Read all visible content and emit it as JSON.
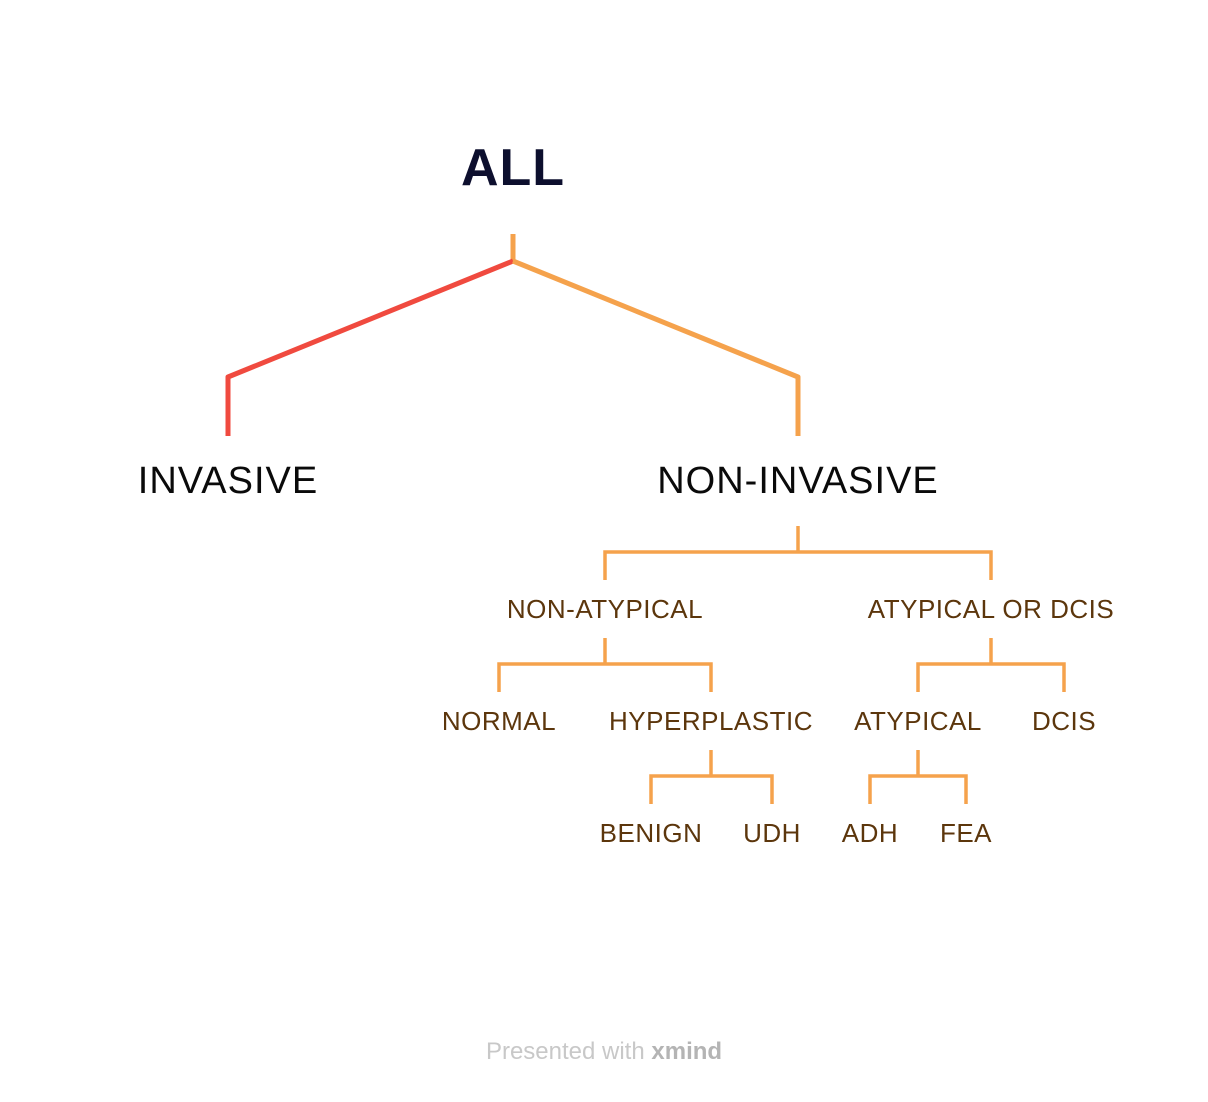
{
  "root": {
    "label": "ALL"
  },
  "main": {
    "invasive": {
      "label": "INVASIVE"
    },
    "non_invasive": {
      "label": "NON-INVASIVE"
    }
  },
  "level2": {
    "non_atypical": {
      "label": "NON-ATYPICAL"
    },
    "atypical_or_dcis": {
      "label": "ATYPICAL OR DCIS"
    }
  },
  "level3": {
    "normal": {
      "label": "NORMAL"
    },
    "hyperplastic": {
      "label": "HYPERPLASTIC"
    },
    "atypical": {
      "label": "ATYPICAL"
    },
    "dcis": {
      "label": "DCIS"
    }
  },
  "level4": {
    "benign": {
      "label": "BENIGN"
    },
    "udh": {
      "label": "UDH"
    },
    "adh": {
      "label": "ADH"
    },
    "fea": {
      "label": "FEA"
    }
  },
  "footer": {
    "prefix": "Presented with",
    "brand": "xmind"
  },
  "colors": {
    "invasive_branch": "#f04a3f",
    "non_invasive_branch": "#f5a24c",
    "root_text": "#0d0f2e",
    "main_text": "#0a0a0a",
    "sub_text": "#5c360c",
    "footer_text": "#c8c8c8"
  }
}
